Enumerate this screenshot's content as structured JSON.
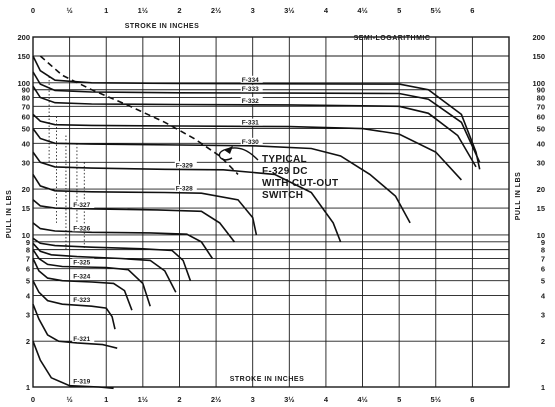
{
  "chart_data": {
    "type": "line",
    "title": "",
    "scale_label": "SEMI-LOGARITHMIC",
    "x_axis_label": "STROKE IN INCHES",
    "y_axis_label": "PULL IN LBS",
    "xlim": [
      0,
      6.5
    ],
    "ylim": [
      1,
      200
    ],
    "y_scale": "log",
    "grid": true,
    "x_ticks": [
      {
        "v": 0,
        "label": "0"
      },
      {
        "v": 0.5,
        "label": "½"
      },
      {
        "v": 1,
        "label": "1"
      },
      {
        "v": 1.5,
        "label": "1½"
      },
      {
        "v": 2,
        "label": "2"
      },
      {
        "v": 2.5,
        "label": "2½"
      },
      {
        "v": 3,
        "label": "3"
      },
      {
        "v": 3.5,
        "label": "3½"
      },
      {
        "v": 4,
        "label": "4"
      },
      {
        "v": 4.5,
        "label": "4½"
      },
      {
        "v": 5,
        "label": "5"
      },
      {
        "v": 5.5,
        "label": "5½"
      },
      {
        "v": 6,
        "label": "6"
      }
    ],
    "y_ticks": [
      {
        "v": 1,
        "label": "1"
      },
      {
        "v": 2,
        "label": "2"
      },
      {
        "v": 3,
        "label": "3"
      },
      {
        "v": 4,
        "label": "4"
      },
      {
        "v": 5,
        "label": "5"
      },
      {
        "v": 6,
        "label": "6"
      },
      {
        "v": 7,
        "label": "7"
      },
      {
        "v": 8,
        "label": "8"
      },
      {
        "v": 9,
        "label": "9"
      },
      {
        "v": 10,
        "label": "10"
      },
      {
        "v": 15,
        "label": "15"
      },
      {
        "v": 20,
        "label": "20"
      },
      {
        "v": 30,
        "label": "30"
      },
      {
        "v": 40,
        "label": "40"
      },
      {
        "v": 50,
        "label": "50"
      },
      {
        "v": 60,
        "label": "60"
      },
      {
        "v": 70,
        "label": "70"
      },
      {
        "v": 80,
        "label": "80"
      },
      {
        "v": 90,
        "label": "90"
      },
      {
        "v": 100,
        "label": "100"
      },
      {
        "v": 150,
        "label": "150"
      },
      {
        "v": 200,
        "label": "200"
      }
    ],
    "series": [
      {
        "name": "F-319",
        "points": [
          [
            0,
            2
          ],
          [
            0.1,
            1.5
          ],
          [
            0.25,
            1.15
          ],
          [
            0.5,
            1.02
          ],
          [
            0.9,
            1
          ],
          [
            1.1,
            0.98
          ]
        ]
      },
      {
        "name": "F-321",
        "points": [
          [
            0,
            3.5
          ],
          [
            0.08,
            2.8
          ],
          [
            0.2,
            2.2
          ],
          [
            0.35,
            2
          ],
          [
            0.6,
            1.95
          ],
          [
            0.95,
            1.9
          ],
          [
            1.05,
            1.85
          ],
          [
            1.15,
            1.8
          ]
        ]
      },
      {
        "name": "F-323",
        "points": [
          [
            0,
            5
          ],
          [
            0.08,
            4.2
          ],
          [
            0.2,
            3.7
          ],
          [
            0.4,
            3.5
          ],
          [
            0.8,
            3.4
          ],
          [
            1,
            3.3
          ],
          [
            1.08,
            2.9
          ],
          [
            1.12,
            2.4
          ]
        ]
      },
      {
        "name": "F-324",
        "points": [
          [
            0,
            7
          ],
          [
            0.08,
            5.8
          ],
          [
            0.2,
            5.2
          ],
          [
            0.4,
            5
          ],
          [
            0.8,
            4.9
          ],
          [
            1.1,
            4.8
          ],
          [
            1.25,
            4.3
          ],
          [
            1.35,
            3.2
          ]
        ]
      },
      {
        "name": "F-325",
        "points": [
          [
            0,
            8
          ],
          [
            0.08,
            7
          ],
          [
            0.2,
            6.4
          ],
          [
            0.4,
            6.2
          ],
          [
            1,
            6.1
          ],
          [
            1.3,
            5.9
          ],
          [
            1.5,
            4.8
          ],
          [
            1.6,
            3.4
          ]
        ]
      },
      {
        "name": "",
        "points": [
          [
            0,
            8.8
          ],
          [
            0.1,
            7.8
          ],
          [
            0.25,
            7.4
          ],
          [
            0.6,
            7.2
          ],
          [
            1.2,
            7
          ],
          [
            1.6,
            6.8
          ],
          [
            1.8,
            5.8
          ],
          [
            1.95,
            4.2
          ]
        ]
      },
      {
        "name": "",
        "points": [
          [
            0,
            9.5
          ],
          [
            0.1,
            8.8
          ],
          [
            0.3,
            8.5
          ],
          [
            0.8,
            8.3
          ],
          [
            1.5,
            8.1
          ],
          [
            1.9,
            7.9
          ],
          [
            2.05,
            6.8
          ],
          [
            2.15,
            5
          ]
        ]
      },
      {
        "name": "F-326",
        "points": [
          [
            0,
            12
          ],
          [
            0.1,
            11
          ],
          [
            0.3,
            10.6
          ],
          [
            0.8,
            10.4
          ],
          [
            1.6,
            10.3
          ],
          [
            2.1,
            10.1
          ],
          [
            2.3,
            9
          ],
          [
            2.45,
            7
          ]
        ]
      },
      {
        "name": "F-327",
        "points": [
          [
            0,
            17
          ],
          [
            0.1,
            15.5
          ],
          [
            0.3,
            15
          ],
          [
            0.8,
            14.8
          ],
          [
            1.7,
            14.6
          ],
          [
            2.3,
            14.3
          ],
          [
            2.55,
            12
          ],
          [
            2.75,
            9
          ]
        ]
      },
      {
        "name": "F-328",
        "points": [
          [
            0,
            25
          ],
          [
            0.1,
            21
          ],
          [
            0.3,
            19.5
          ],
          [
            0.8,
            19.2
          ],
          [
            1.8,
            19
          ],
          [
            2.3,
            18.8
          ],
          [
            2.8,
            17
          ],
          [
            3,
            13
          ],
          [
            3.05,
            10
          ]
        ]
      },
      {
        "name": "F-329",
        "points": [
          [
            0,
            35
          ],
          [
            0.1,
            30
          ],
          [
            0.3,
            28
          ],
          [
            0.8,
            27.5
          ],
          [
            1.8,
            27
          ],
          [
            2.6,
            26.8
          ],
          [
            3.3,
            25
          ],
          [
            3.8,
            19
          ],
          [
            4.1,
            12
          ],
          [
            4.2,
            9
          ]
        ]
      },
      {
        "name": "F-330",
        "points": [
          [
            0,
            50
          ],
          [
            0.1,
            43
          ],
          [
            0.3,
            40
          ],
          [
            0.8,
            39.5
          ],
          [
            2,
            39
          ],
          [
            3,
            38.5
          ],
          [
            3.8,
            37
          ],
          [
            4.2,
            33
          ],
          [
            4.6,
            25
          ],
          [
            4.95,
            18
          ],
          [
            5.15,
            12
          ]
        ]
      },
      {
        "name": "F-331",
        "points": [
          [
            0,
            62
          ],
          [
            0.1,
            56
          ],
          [
            0.3,
            53
          ],
          [
            0.8,
            52.5
          ],
          [
            2,
            52
          ],
          [
            3.5,
            51.5
          ],
          [
            4.5,
            50
          ],
          [
            5,
            46
          ],
          [
            5.5,
            35
          ],
          [
            5.85,
            23
          ]
        ]
      },
      {
        "name": "F-332",
        "points": [
          [
            0,
            95
          ],
          [
            0.1,
            80
          ],
          [
            0.3,
            74
          ],
          [
            0.8,
            72.5
          ],
          [
            2,
            72
          ],
          [
            3.5,
            71.5
          ],
          [
            5,
            70
          ],
          [
            5.4,
            63
          ],
          [
            5.8,
            45
          ],
          [
            6.05,
            28
          ]
        ]
      },
      {
        "name": "F-333",
        "points": [
          [
            0,
            118
          ],
          [
            0.1,
            98
          ],
          [
            0.3,
            89
          ],
          [
            0.8,
            87
          ],
          [
            2,
            86
          ],
          [
            3.5,
            85.5
          ],
          [
            5,
            85
          ],
          [
            5.4,
            78
          ],
          [
            5.85,
            55
          ],
          [
            6.1,
            30
          ]
        ]
      },
      {
        "name": "F-334",
        "points": [
          [
            0,
            150
          ],
          [
            0.1,
            120
          ],
          [
            0.3,
            104
          ],
          [
            0.8,
            100
          ],
          [
            2,
            99
          ],
          [
            3.5,
            98.5
          ],
          [
            5,
            98
          ],
          [
            5.4,
            90
          ],
          [
            5.85,
            62
          ],
          [
            6.05,
            35
          ],
          [
            6.1,
            27
          ]
        ]
      }
    ],
    "cutout_series": {
      "name": "",
      "points": [
        [
          0.1,
          150
        ],
        [
          0.4,
          112
        ],
        [
          0.8,
          90
        ],
        [
          1.3,
          71
        ],
        [
          1.8,
          55
        ],
        [
          2.2,
          43
        ],
        [
          2.55,
          33
        ],
        [
          2.7,
          28
        ],
        [
          2.8,
          25
        ]
      ]
    },
    "annotations": [
      {
        "id": "note",
        "lines": [
          "TYPICAL",
          "F-329 DC",
          "WITH CUT-OUT",
          "SWITCH"
        ]
      }
    ]
  }
}
